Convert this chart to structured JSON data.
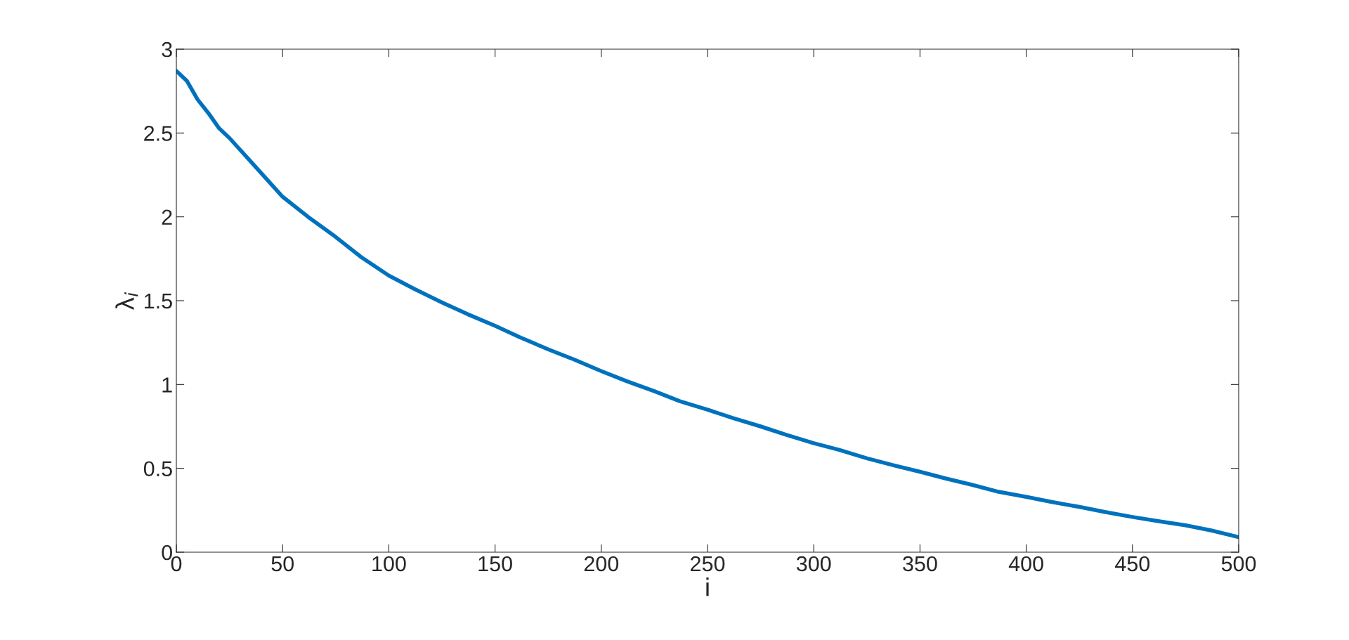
{
  "chart_data": {
    "type": "line",
    "xlabel": "i",
    "ylabel": "λ$_{i}$",
    "x": [
      0,
      5,
      10,
      15,
      20,
      25,
      35,
      50,
      62,
      75,
      87,
      100,
      112,
      125,
      137,
      150,
      162,
      175,
      187,
      200,
      212,
      225,
      237,
      250,
      262,
      275,
      287,
      300,
      312,
      325,
      337,
      350,
      362,
      375,
      387,
      400,
      412,
      425,
      437,
      450,
      462,
      475,
      487,
      500
    ],
    "series": [
      {
        "color": "#0072bd",
        "values": [
          2.87,
          2.81,
          2.7,
          2.62,
          2.53,
          2.47,
          2.33,
          2.12,
          2.0,
          1.88,
          1.76,
          1.65,
          1.57,
          1.49,
          1.42,
          1.35,
          1.28,
          1.21,
          1.15,
          1.08,
          1.02,
          0.96,
          0.9,
          0.85,
          0.8,
          0.75,
          0.7,
          0.65,
          0.61,
          0.56,
          0.52,
          0.48,
          0.44,
          0.4,
          0.36,
          0.33,
          0.3,
          0.27,
          0.24,
          0.21,
          0.185,
          0.16,
          0.13,
          0.09
        ]
      }
    ],
    "xlim": [
      0,
      500
    ],
    "xticks": [
      0,
      50,
      100,
      150,
      200,
      250,
      300,
      350,
      400,
      450,
      500
    ],
    "ylim": [
      0,
      3
    ],
    "yticks": [
      0,
      0.5,
      1,
      1.5,
      2,
      2.5,
      3
    ],
    "grid": false,
    "legend": false,
    "marker": "none",
    "line_style": "solid"
  }
}
